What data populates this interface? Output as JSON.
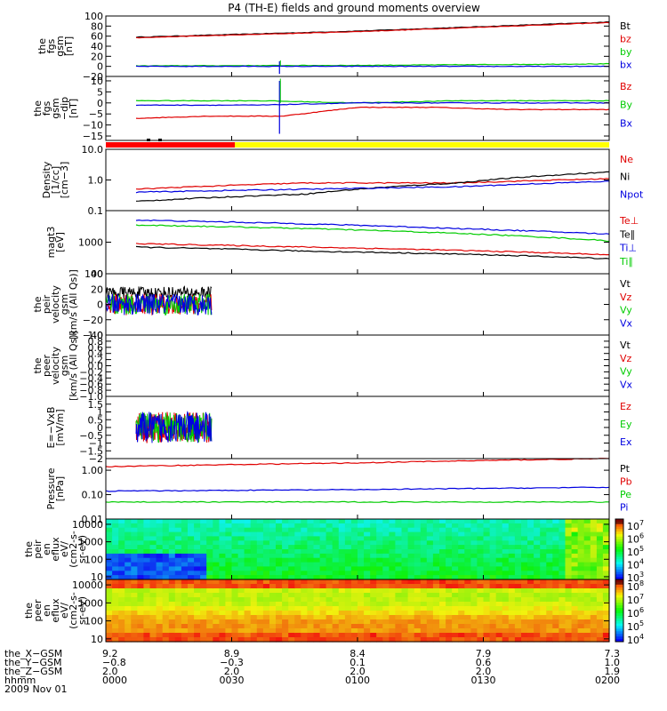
{
  "title": "P4 (TH-E) fields and ground moments overview",
  "colors": {
    "black": "#000000",
    "red": "#e00000",
    "green": "#00cc00",
    "blue": "#0000e0",
    "yellow": "#ffff00"
  },
  "chart_data": [
    {
      "id": "fgs-gsm",
      "type": "line",
      "ylabel": [
        "the",
        "fgs",
        "gsm",
        "[nT]"
      ],
      "ylim": [
        -20,
        100
      ],
      "yticks": [
        {
          "v": 100,
          "t": "100"
        },
        {
          "v": 80,
          "t": "80"
        },
        {
          "v": 60,
          "t": "60"
        },
        {
          "v": 40,
          "t": "40"
        },
        {
          "v": 20,
          "t": "20"
        },
        {
          "v": 0,
          "t": "0"
        },
        {
          "v": -20,
          "t": "−20"
        }
      ],
      "legend": [
        {
          "label": "Bt",
          "color": "#000000"
        },
        {
          "label": "bz",
          "color": "#e00000"
        },
        {
          "label": "by",
          "color": "#00cc00"
        },
        {
          "label": "bx",
          "color": "#0000e0"
        }
      ],
      "series": [
        {
          "name": "Bt",
          "color": "#000000",
          "x": [
            0.06,
            0.5,
            1
          ],
          "y": [
            58,
            70,
            88
          ]
        },
        {
          "name": "bz",
          "color": "#e00000",
          "x": [
            0.06,
            0.5,
            1
          ],
          "y": [
            57,
            69,
            87
          ]
        },
        {
          "name": "by",
          "color": "#00cc00",
          "x": [
            0.06,
            0.5,
            1
          ],
          "y": [
            1,
            2,
            5
          ]
        },
        {
          "name": "bx",
          "color": "#0000e0",
          "x": [
            0.06,
            0.5,
            1
          ],
          "y": [
            0,
            0,
            0
          ]
        }
      ]
    },
    {
      "id": "fgs-gse-dip",
      "type": "line",
      "ylabel": [
        "the",
        "fgs",
        "gsm",
        "−dip",
        "[nT]"
      ],
      "ylim": [
        -17,
        12
      ],
      "yticks": [
        {
          "v": 10,
          "t": "10"
        },
        {
          "v": 5,
          "t": "5"
        },
        {
          "v": 0,
          "t": "0"
        },
        {
          "v": -5,
          "t": "−5"
        },
        {
          "v": -10,
          "t": "−10"
        },
        {
          "v": -15,
          "t": "−15"
        }
      ],
      "legend": [
        {
          "label": "Bz",
          "color": "#e00000"
        },
        {
          "label": "By",
          "color": "#00cc00"
        },
        {
          "label": "Bx",
          "color": "#0000e0"
        }
      ],
      "series": [
        {
          "name": "Bz",
          "color": "#e00000",
          "x": [
            0.06,
            0.2,
            0.35,
            0.5,
            0.65,
            0.8,
            1
          ],
          "y": [
            -7,
            -6,
            -6,
            -2,
            -2,
            -3,
            -3
          ]
        },
        {
          "name": "By",
          "color": "#00cc00",
          "x": [
            0.06,
            0.3,
            0.5,
            0.7,
            1
          ],
          "y": [
            1,
            1,
            0,
            1,
            1
          ]
        },
        {
          "name": "Bx",
          "color": "#0000e0",
          "x": [
            0.06,
            0.3,
            0.5,
            0.7,
            1
          ],
          "y": [
            -1,
            -1,
            0,
            0,
            0
          ]
        }
      ]
    },
    {
      "id": "density",
      "type": "line",
      "scale": "log",
      "ylabel": [
        "Density",
        "[1/cc]",
        "[cm−3]"
      ],
      "ylim": [
        0.1,
        10
      ],
      "yticks": [
        {
          "v": 10,
          "t": "10.0"
        },
        {
          "v": 1,
          "t": "1.0"
        },
        {
          "v": 0.1,
          "t": "0.1"
        }
      ],
      "legend": [
        {
          "label": "Ne",
          "color": "#e00000"
        },
        {
          "label": "Ni",
          "color": "#000000"
        },
        {
          "label": "Npot",
          "color": "#0000e0"
        }
      ],
      "series": [
        {
          "name": "Ne",
          "color": "#e00000",
          "x": [
            0.06,
            0.4,
            0.7,
            1
          ],
          "y": [
            0.5,
            0.8,
            0.8,
            1.1
          ]
        },
        {
          "name": "Ni",
          "color": "#000000",
          "x": [
            0.06,
            0.4,
            0.7,
            1
          ],
          "y": [
            0.2,
            0.35,
            0.8,
            1.8
          ]
        },
        {
          "name": "Npot",
          "color": "#0000e0",
          "x": [
            0.06,
            0.4,
            0.7,
            1
          ],
          "y": [
            0.4,
            0.5,
            0.6,
            0.9
          ]
        }
      ]
    },
    {
      "id": "temperature",
      "type": "line",
      "scale": "log",
      "ylabel": [
        "magt3",
        "[eV]"
      ],
      "ylim": [
        100,
        10000
      ],
      "yticks": [
        {
          "v": 1000,
          "t": "1000"
        },
        {
          "v": 100,
          "t": "100"
        }
      ],
      "legend": [
        {
          "label": "Te⊥",
          "color": "#e00000"
        },
        {
          "label": "Te∥",
          "color": "#000000"
        },
        {
          "label": "Ti⊥",
          "color": "#0000e0"
        },
        {
          "label": "Ti∥",
          "color": "#00cc00"
        }
      ],
      "series": [
        {
          "name": "Te⊥",
          "color": "#e00000",
          "x": [
            0.06,
            0.4,
            0.7,
            1
          ],
          "y": [
            900,
            700,
            550,
            400
          ]
        },
        {
          "name": "Te∥",
          "color": "#000000",
          "x": [
            0.06,
            0.4,
            0.7,
            1
          ],
          "y": [
            700,
            520,
            420,
            300
          ]
        },
        {
          "name": "Ti⊥",
          "color": "#0000e0",
          "x": [
            0.06,
            0.4,
            0.7,
            1
          ],
          "y": [
            5000,
            3800,
            2700,
            1800
          ]
        },
        {
          "name": "Ti∥",
          "color": "#00cc00",
          "x": [
            0.06,
            0.4,
            0.7,
            1
          ],
          "y": [
            3500,
            2700,
            1900,
            1100
          ]
        }
      ]
    },
    {
      "id": "peir-velocity",
      "type": "line",
      "ylabel": [
        "the",
        "peir",
        "velocity",
        "gsm",
        "[km/s (All Qs)]"
      ],
      "ylim": [
        -40,
        40
      ],
      "yticks": [
        {
          "v": 40,
          "t": "40"
        },
        {
          "v": 20,
          "t": "20"
        },
        {
          "v": 0,
          "t": "0"
        },
        {
          "v": -20,
          "t": "−20"
        },
        {
          "v": -40,
          "t": "−40"
        }
      ],
      "legend": [
        {
          "label": "Vt",
          "color": "#000000"
        },
        {
          "label": "Vz",
          "color": "#e00000"
        },
        {
          "label": "Vy",
          "color": "#00cc00"
        },
        {
          "label": "Vx",
          "color": "#0000e0"
        }
      ],
      "series": [
        {
          "name": "Vt",
          "color": "#000000",
          "x": [
            0,
            0.21
          ],
          "y": [
            15,
            15
          ]
        },
        {
          "name": "Vz",
          "color": "#e00000",
          "x": [
            0,
            0.21
          ],
          "y": [
            0,
            0
          ]
        },
        {
          "name": "Vy",
          "color": "#00cc00",
          "x": [
            0,
            0.21
          ],
          "y": [
            0,
            0
          ]
        },
        {
          "name": "Vx",
          "color": "#0000e0",
          "x": [
            0,
            0.21
          ],
          "y": [
            0,
            0
          ]
        }
      ]
    },
    {
      "id": "peer-velocity",
      "type": "line",
      "ylabel": [
        "the",
        "peer",
        "velocity",
        "gsm",
        "[km/s (All Qs)]"
      ],
      "ylim": [
        -1,
        1
      ],
      "yticks": [
        {
          "v": 1,
          "t": "1.0"
        },
        {
          "v": 0.8,
          "t": "0.8"
        },
        {
          "v": 0.6,
          "t": "0.6"
        },
        {
          "v": 0.4,
          "t": "0.4"
        },
        {
          "v": 0.2,
          "t": "0.2"
        },
        {
          "v": 0,
          "t": "0.0"
        },
        {
          "v": -0.2,
          "t": "−0.2"
        },
        {
          "v": -0.4,
          "t": "−0.4"
        },
        {
          "v": -0.6,
          "t": "−0.6"
        },
        {
          "v": -0.8,
          "t": "−0.8"
        },
        {
          "v": -1,
          "t": "−1.0"
        }
      ],
      "legend": [
        {
          "label": "Vt",
          "color": "#000000"
        },
        {
          "label": "Vz",
          "color": "#e00000"
        },
        {
          "label": "Vy",
          "color": "#00cc00"
        },
        {
          "label": "Vx",
          "color": "#0000e0"
        }
      ],
      "series": []
    },
    {
      "id": "efield",
      "type": "line",
      "ylabel": [
        "E=−VxB",
        "[mV/m]"
      ],
      "ylim": [
        -2,
        2
      ],
      "yticks": [
        {
          "v": 1.5,
          "t": "1.5"
        },
        {
          "v": 1,
          "t": "1"
        },
        {
          "v": 0.5,
          "t": "0.5"
        },
        {
          "v": 0,
          "t": "0"
        },
        {
          "v": -0.5,
          "t": "−0.5"
        },
        {
          "v": -1,
          "t": "−1"
        },
        {
          "v": -1.5,
          "t": "−1.5"
        },
        {
          "v": -2,
          "t": "−2"
        }
      ],
      "legend": [
        {
          "label": "Ez",
          "color": "#e00000"
        },
        {
          "label": "Ey",
          "color": "#00cc00"
        },
        {
          "label": "Ex",
          "color": "#0000e0"
        }
      ],
      "series": [
        {
          "name": "Ez",
          "color": "#e00000",
          "x": [
            0.06,
            0.21
          ],
          "y": [
            0,
            0
          ]
        },
        {
          "name": "Ey",
          "color": "#00cc00",
          "x": [
            0.06,
            0.21
          ],
          "y": [
            0,
            0
          ]
        },
        {
          "name": "Ex",
          "color": "#0000e0",
          "x": [
            0.06,
            0.21
          ],
          "y": [
            0,
            0
          ]
        }
      ]
    },
    {
      "id": "pressure",
      "type": "line",
      "scale": "log",
      "ylabel": [
        "Pressure",
        "[nPa]"
      ],
      "ylim": [
        0.01,
        3
      ],
      "yticks": [
        {
          "v": 1,
          "t": "1.00"
        },
        {
          "v": 0.1,
          "t": "0.10"
        },
        {
          "v": 0.01,
          "t": "0.01"
        }
      ],
      "legend": [
        {
          "label": "Pt",
          "color": "#000000"
        },
        {
          "label": "Pb",
          "color": "#e00000"
        },
        {
          "label": "Pe",
          "color": "#00cc00"
        },
        {
          "label": "Pi",
          "color": "#0000e0"
        }
      ],
      "series": [
        {
          "name": "Pb",
          "color": "#e00000",
          "x": [
            0,
            0.5,
            1
          ],
          "y": [
            1.4,
            2.0,
            3.0
          ]
        },
        {
          "name": "Pi",
          "color": "#0000e0",
          "x": [
            0,
            0.5,
            1
          ],
          "y": [
            0.14,
            0.16,
            0.2
          ]
        },
        {
          "name": "Pe",
          "color": "#00cc00",
          "x": [
            0,
            0.5,
            1
          ],
          "y": [
            0.05,
            0.05,
            0.05
          ]
        }
      ]
    },
    {
      "id": "peir-spectrogram",
      "type": "heatmap",
      "ylabel": [
        "the",
        "peir",
        "en",
        "eflux",
        "eV/",
        "(cm2-s-",
        "sr-eV)"
      ],
      "yticks": [
        {
          "v": 10000,
          "t": "10000"
        },
        {
          "v": 1000,
          "t": "1000"
        },
        {
          "v": 100,
          "t": "100"
        },
        {
          "v": 10,
          "t": "10"
        }
      ],
      "colorbar": {
        "labels": [
          {
            "exp": "7"
          },
          {
            "exp": "6"
          },
          {
            "exp": "5"
          },
          {
            "exp": "4"
          },
          {
            "exp": "3"
          }
        ]
      }
    },
    {
      "id": "peer-spectrogram",
      "type": "heatmap",
      "ylabel": [
        "the",
        "peer",
        "en",
        "eflux",
        "eV/",
        "(cm2-s-",
        "sr-eV)"
      ],
      "yticks": [
        {
          "v": 10000,
          "t": "10000"
        },
        {
          "v": 1000,
          "t": "1000"
        },
        {
          "v": 100,
          "t": "100"
        },
        {
          "v": 10,
          "t": "10"
        }
      ],
      "colorbar": {
        "labels": [
          {
            "exp": "8"
          },
          {
            "exp": "7"
          },
          {
            "exp": "6"
          },
          {
            "exp": "5"
          },
          {
            "exp": "4"
          }
        ]
      }
    }
  ],
  "footer": {
    "labels": [
      "the_X−GSM",
      "the_Y−GSM",
      "the_Z−GSM",
      "hhmm",
      "2009 Nov 01"
    ],
    "columns": [
      {
        "x": "9.2",
        "y": "−0.8",
        "z": "2.0",
        "t": "0000"
      },
      {
        "x": "8.9",
        "y": "−0.3",
        "z": "2.0",
        "t": "0030"
      },
      {
        "x": "8.4",
        "y": "0.1",
        "z": "2.0",
        "t": "0100"
      },
      {
        "x": "7.9",
        "y": "0.6",
        "z": "2.0",
        "t": "0130"
      },
      {
        "x": "7.3",
        "y": "1.0",
        "z": "1.9",
        "t": "0200"
      }
    ]
  }
}
